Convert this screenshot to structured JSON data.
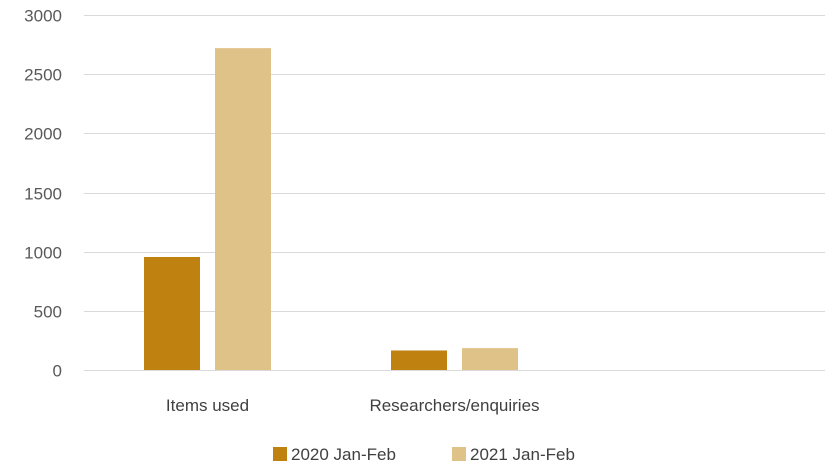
{
  "chart_data": {
    "type": "bar",
    "categories": [
      "Items used",
      "Researchers/enquiries",
      ""
    ],
    "series": [
      {
        "name": "2020 Jan-Feb",
        "values": [
          955,
          165,
          null
        ],
        "color": "#bf8211"
      },
      {
        "name": "2021 Jan-Feb",
        "values": [
          2720,
          185,
          null
        ],
        "color": "#dfc288"
      }
    ],
    "title": "",
    "xlabel": "",
    "ylabel": "",
    "ylim": [
      0,
      3000
    ],
    "yticks": [
      0,
      500,
      1000,
      1500,
      2000,
      2500,
      3000
    ],
    "grid": true,
    "legend": "bottom"
  }
}
